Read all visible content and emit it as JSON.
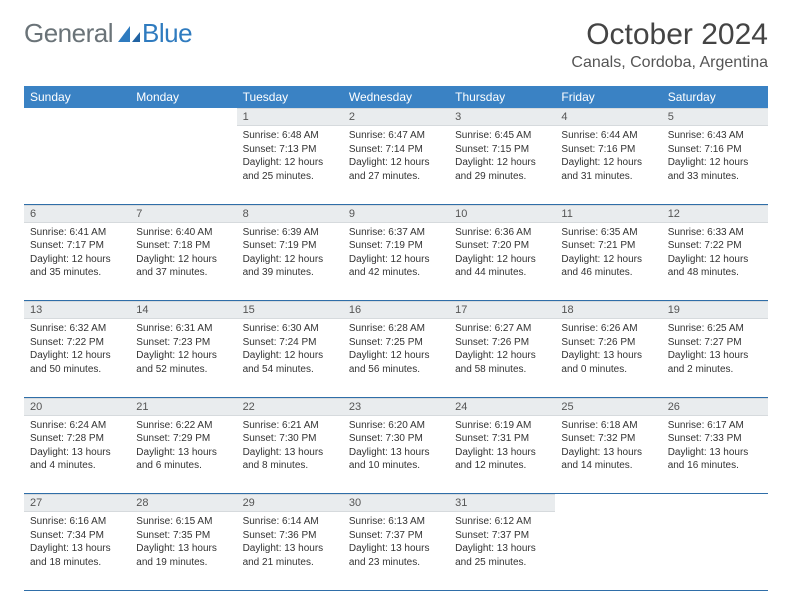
{
  "logo": {
    "part1": "General",
    "part2": "Blue"
  },
  "title": "October 2024",
  "location": "Canals, Cordoba, Argentina",
  "weekdays": [
    "Sunday",
    "Monday",
    "Tuesday",
    "Wednesday",
    "Thursday",
    "Friday",
    "Saturday"
  ],
  "header_bg": "#3a82c4",
  "daynum_bg": "#e9ecee",
  "rule_color": "#2f6ea8",
  "weeks": [
    [
      null,
      null,
      {
        "n": "1",
        "sr": "6:48 AM",
        "ss": "7:13 PM",
        "dl": "12 hours and 25 minutes."
      },
      {
        "n": "2",
        "sr": "6:47 AM",
        "ss": "7:14 PM",
        "dl": "12 hours and 27 minutes."
      },
      {
        "n": "3",
        "sr": "6:45 AM",
        "ss": "7:15 PM",
        "dl": "12 hours and 29 minutes."
      },
      {
        "n": "4",
        "sr": "6:44 AM",
        "ss": "7:16 PM",
        "dl": "12 hours and 31 minutes."
      },
      {
        "n": "5",
        "sr": "6:43 AM",
        "ss": "7:16 PM",
        "dl": "12 hours and 33 minutes."
      }
    ],
    [
      {
        "n": "6",
        "sr": "6:41 AM",
        "ss": "7:17 PM",
        "dl": "12 hours and 35 minutes."
      },
      {
        "n": "7",
        "sr": "6:40 AM",
        "ss": "7:18 PM",
        "dl": "12 hours and 37 minutes."
      },
      {
        "n": "8",
        "sr": "6:39 AM",
        "ss": "7:19 PM",
        "dl": "12 hours and 39 minutes."
      },
      {
        "n": "9",
        "sr": "6:37 AM",
        "ss": "7:19 PM",
        "dl": "12 hours and 42 minutes."
      },
      {
        "n": "10",
        "sr": "6:36 AM",
        "ss": "7:20 PM",
        "dl": "12 hours and 44 minutes."
      },
      {
        "n": "11",
        "sr": "6:35 AM",
        "ss": "7:21 PM",
        "dl": "12 hours and 46 minutes."
      },
      {
        "n": "12",
        "sr": "6:33 AM",
        "ss": "7:22 PM",
        "dl": "12 hours and 48 minutes."
      }
    ],
    [
      {
        "n": "13",
        "sr": "6:32 AM",
        "ss": "7:22 PM",
        "dl": "12 hours and 50 minutes."
      },
      {
        "n": "14",
        "sr": "6:31 AM",
        "ss": "7:23 PM",
        "dl": "12 hours and 52 minutes."
      },
      {
        "n": "15",
        "sr": "6:30 AM",
        "ss": "7:24 PM",
        "dl": "12 hours and 54 minutes."
      },
      {
        "n": "16",
        "sr": "6:28 AM",
        "ss": "7:25 PM",
        "dl": "12 hours and 56 minutes."
      },
      {
        "n": "17",
        "sr": "6:27 AM",
        "ss": "7:26 PM",
        "dl": "12 hours and 58 minutes."
      },
      {
        "n": "18",
        "sr": "6:26 AM",
        "ss": "7:26 PM",
        "dl": "13 hours and 0 minutes."
      },
      {
        "n": "19",
        "sr": "6:25 AM",
        "ss": "7:27 PM",
        "dl": "13 hours and 2 minutes."
      }
    ],
    [
      {
        "n": "20",
        "sr": "6:24 AM",
        "ss": "7:28 PM",
        "dl": "13 hours and 4 minutes."
      },
      {
        "n": "21",
        "sr": "6:22 AM",
        "ss": "7:29 PM",
        "dl": "13 hours and 6 minutes."
      },
      {
        "n": "22",
        "sr": "6:21 AM",
        "ss": "7:30 PM",
        "dl": "13 hours and 8 minutes."
      },
      {
        "n": "23",
        "sr": "6:20 AM",
        "ss": "7:30 PM",
        "dl": "13 hours and 10 minutes."
      },
      {
        "n": "24",
        "sr": "6:19 AM",
        "ss": "7:31 PM",
        "dl": "13 hours and 12 minutes."
      },
      {
        "n": "25",
        "sr": "6:18 AM",
        "ss": "7:32 PM",
        "dl": "13 hours and 14 minutes."
      },
      {
        "n": "26",
        "sr": "6:17 AM",
        "ss": "7:33 PM",
        "dl": "13 hours and 16 minutes."
      }
    ],
    [
      {
        "n": "27",
        "sr": "6:16 AM",
        "ss": "7:34 PM",
        "dl": "13 hours and 18 minutes."
      },
      {
        "n": "28",
        "sr": "6:15 AM",
        "ss": "7:35 PM",
        "dl": "13 hours and 19 minutes."
      },
      {
        "n": "29",
        "sr": "6:14 AM",
        "ss": "7:36 PM",
        "dl": "13 hours and 21 minutes."
      },
      {
        "n": "30",
        "sr": "6:13 AM",
        "ss": "7:37 PM",
        "dl": "13 hours and 23 minutes."
      },
      {
        "n": "31",
        "sr": "6:12 AM",
        "ss": "7:37 PM",
        "dl": "13 hours and 25 minutes."
      },
      null,
      null
    ]
  ],
  "labels": {
    "sunrise": "Sunrise:",
    "sunset": "Sunset:",
    "daylight": "Daylight:"
  }
}
